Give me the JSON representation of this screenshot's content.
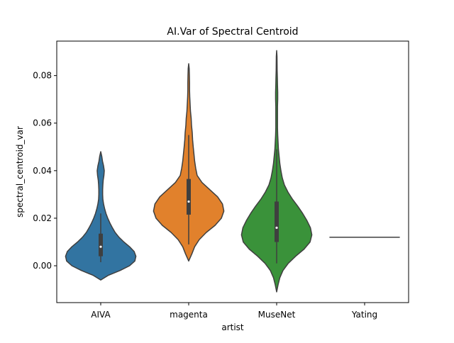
{
  "chart_data": {
    "type": "violin",
    "title": "AI.Var of Spectral Centroid",
    "xlabel": "artist",
    "ylabel": "spectral_centroid_var",
    "ylim": [
      -0.0155,
      0.0945
    ],
    "yticks": [
      0.0,
      0.02,
      0.04,
      0.06,
      0.08
    ],
    "ytick_labels": [
      "0.00",
      "0.02",
      "0.04",
      "0.06",
      "0.08"
    ],
    "categories": [
      "AIVA",
      "magenta",
      "MuseNet",
      "Yating"
    ],
    "grid": false,
    "series": [
      {
        "category": "AIVA",
        "color": "#3274a1",
        "min": -0.006,
        "max": 0.048,
        "whisker_low": 0.0015,
        "q1": 0.004,
        "median": 0.008,
        "q3": 0.0135,
        "whisker_high": 0.022,
        "density_y": [
          -0.006,
          -0.004,
          -0.002,
          0.0,
          0.002,
          0.004,
          0.006,
          0.008,
          0.01,
          0.012,
          0.014,
          0.016,
          0.018,
          0.02,
          0.022,
          0.024,
          0.026,
          0.028,
          0.03,
          0.032,
          0.034,
          0.036,
          0.038,
          0.04,
          0.042,
          0.044,
          0.046,
          0.048
        ],
        "density_w": [
          0.0,
          0.22,
          0.55,
          0.82,
          0.97,
          1.0,
          0.95,
          0.82,
          0.66,
          0.52,
          0.41,
          0.33,
          0.26,
          0.2,
          0.15,
          0.11,
          0.08,
          0.06,
          0.055,
          0.055,
          0.06,
          0.07,
          0.09,
          0.1,
          0.08,
          0.05,
          0.03,
          0.0
        ]
      },
      {
        "category": "magenta",
        "color": "#e1812c",
        "min": 0.002,
        "max": 0.085,
        "whisker_low": 0.009,
        "q1": 0.0215,
        "median": 0.027,
        "q3": 0.0365,
        "whisker_high": 0.055,
        "density_y": [
          0.002,
          0.005,
          0.008,
          0.011,
          0.014,
          0.017,
          0.02,
          0.023,
          0.026,
          0.029,
          0.032,
          0.035,
          0.038,
          0.041,
          0.044,
          0.047,
          0.05,
          0.053,
          0.056,
          0.059,
          0.062,
          0.065,
          0.068,
          0.071,
          0.074,
          0.077,
          0.08,
          0.083,
          0.085
        ],
        "density_w": [
          0.0,
          0.09,
          0.17,
          0.3,
          0.5,
          0.75,
          0.93,
          1.0,
          0.96,
          0.82,
          0.6,
          0.38,
          0.24,
          0.2,
          0.17,
          0.15,
          0.13,
          0.11,
          0.1,
          0.08,
          0.07,
          0.05,
          0.04,
          0.03,
          0.025,
          0.025,
          0.02,
          0.015,
          0.0
        ]
      },
      {
        "category": "MuseNet",
        "color": "#3a923a",
        "min": -0.011,
        "max": 0.0905,
        "whisker_low": 0.001,
        "q1": 0.01,
        "median": 0.016,
        "q3": 0.027,
        "whisker_high": 0.049,
        "density_y": [
          -0.011,
          -0.008,
          -0.005,
          -0.002,
          0.001,
          0.004,
          0.007,
          0.01,
          0.013,
          0.016,
          0.019,
          0.022,
          0.025,
          0.028,
          0.031,
          0.034,
          0.037,
          0.04,
          0.043,
          0.046,
          0.049,
          0.052,
          0.055,
          0.058,
          0.061,
          0.064,
          0.067,
          0.07,
          0.073,
          0.076,
          0.079,
          0.082,
          0.085,
          0.088,
          0.0905
        ],
        "density_w": [
          0.0,
          0.04,
          0.09,
          0.18,
          0.33,
          0.54,
          0.78,
          0.95,
          1.0,
          0.96,
          0.86,
          0.74,
          0.6,
          0.45,
          0.32,
          0.22,
          0.16,
          0.12,
          0.09,
          0.07,
          0.05,
          0.04,
          0.03,
          0.025,
          0.025,
          0.025,
          0.025,
          0.03,
          0.03,
          0.025,
          0.02,
          0.015,
          0.012,
          0.01,
          0.0
        ]
      },
      {
        "category": "Yating",
        "color": "#c03d3e",
        "constant": 0.012
      }
    ]
  }
}
